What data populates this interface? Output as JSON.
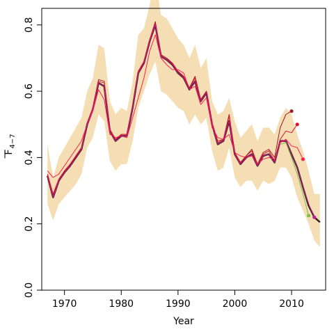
{
  "chart_data": {
    "type": "line",
    "title": "",
    "xlabel": "Year",
    "ylabel_main": "F",
    "ylabel_sub": "4−7",
    "xlim": [
      1966,
      2016
    ],
    "ylim": [
      0,
      0.85
    ],
    "x_ticks": [
      1970,
      1980,
      1990,
      2000,
      2010
    ],
    "y_ticks": [
      0.0,
      0.2,
      0.4,
      0.6,
      0.8
    ],
    "y_tick_labels": [
      "0.0",
      "0.2",
      "0.4",
      "0.6",
      "0.8"
    ],
    "grid": false,
    "legend": "none",
    "band_color": "#f5deb3",
    "band": {
      "x": [
        1967,
        1968,
        1969,
        1970,
        1971,
        1972,
        1973,
        1974,
        1975,
        1976,
        1977,
        1978,
        1979,
        1980,
        1981,
        1982,
        1983,
        1984,
        1985,
        1986,
        1987,
        1988,
        1989,
        1990,
        1991,
        1992,
        1993,
        1994,
        1995,
        1996,
        1997,
        1998,
        1999,
        2000,
        2001,
        2002,
        2003,
        2004,
        2005,
        2006,
        2007,
        2008,
        2009,
        2010,
        2011,
        2012,
        2013,
        2014,
        2015
      ],
      "lower": [
        0.26,
        0.21,
        0.26,
        0.28,
        0.3,
        0.32,
        0.35,
        0.43,
        0.46,
        0.53,
        0.51,
        0.39,
        0.36,
        0.38,
        0.38,
        0.45,
        0.55,
        0.6,
        0.65,
        0.69,
        0.6,
        0.59,
        0.57,
        0.55,
        0.54,
        0.5,
        0.53,
        0.5,
        0.52,
        0.42,
        0.36,
        0.37,
        0.43,
        0.34,
        0.31,
        0.33,
        0.33,
        0.3,
        0.33,
        0.32,
        0.33,
        0.37,
        0.37,
        0.34,
        0.28,
        0.24,
        0.2,
        0.15,
        0.13
      ],
      "upper": [
        0.44,
        0.34,
        0.4,
        0.43,
        0.46,
        0.49,
        0.52,
        0.6,
        0.64,
        0.74,
        0.73,
        0.57,
        0.53,
        0.55,
        0.54,
        0.63,
        0.77,
        0.79,
        0.86,
        0.94,
        0.83,
        0.82,
        0.79,
        0.76,
        0.74,
        0.7,
        0.74,
        0.67,
        0.7,
        0.57,
        0.53,
        0.54,
        0.58,
        0.51,
        0.46,
        0.48,
        0.5,
        0.45,
        0.49,
        0.49,
        0.47,
        0.52,
        0.55,
        0.53,
        0.47,
        0.42,
        0.36,
        0.29,
        0.29
      ]
    },
    "series": [
      {
        "color": "#3a1d1d",
        "width": 2.5,
        "x": [
          1967,
          1968,
          1969,
          1970,
          1971,
          1972,
          1973,
          1974,
          1975,
          1976,
          1977,
          1978,
          1979,
          1980,
          1981,
          1982,
          1983,
          1984,
          1985,
          1986,
          1987,
          1988,
          1989,
          1990,
          1991,
          1992,
          1993,
          1994,
          1995,
          1996,
          1997,
          1998,
          1999,
          2000,
          2001,
          2002,
          2003,
          2004,
          2005,
          2006,
          2007,
          2008,
          2009,
          2010,
          2011,
          2012,
          2013,
          2014,
          2015
        ],
        "y": [
          0.345,
          0.28,
          0.33,
          0.355,
          0.375,
          0.4,
          0.425,
          0.5,
          0.545,
          0.625,
          0.615,
          0.48,
          0.45,
          0.465,
          0.465,
          0.55,
          0.655,
          0.685,
          0.75,
          0.8,
          0.705,
          0.695,
          0.68,
          0.655,
          0.64,
          0.605,
          0.63,
          0.57,
          0.595,
          0.5,
          0.44,
          0.45,
          0.51,
          0.41,
          0.38,
          0.4,
          0.41,
          0.375,
          0.405,
          0.41,
          0.385,
          0.45,
          0.45,
          0.41,
          0.37,
          0.31,
          0.255,
          0.22,
          0.205
        ],
        "marker": null
      },
      {
        "color": "#ff1f4f",
        "width": 1,
        "x": [
          1967,
          1968,
          1969,
          1970,
          1971,
          1972,
          1973,
          1974,
          1975,
          1976,
          1977,
          1978,
          1979,
          1980,
          1981,
          1982,
          1983,
          1984,
          1985,
          1986,
          1987,
          1988,
          1989,
          1990,
          1991,
          1992,
          1993,
          1994,
          1995,
          1996,
          1997,
          1998,
          1999,
          2000,
          2001,
          2002,
          2003,
          2004,
          2005,
          2006,
          2007,
          2008,
          2009,
          2010,
          2011,
          2012
        ],
        "y": [
          0.36,
          0.34,
          0.35,
          0.375,
          0.4,
          0.425,
          0.45,
          0.5,
          0.54,
          0.605,
          0.575,
          0.47,
          0.46,
          0.465,
          0.46,
          0.52,
          0.58,
          0.64,
          0.72,
          0.77,
          0.7,
          0.68,
          0.665,
          0.665,
          0.655,
          0.605,
          0.615,
          0.56,
          0.58,
          0.49,
          0.46,
          0.455,
          0.47,
          0.415,
          0.405,
          0.4,
          0.405,
          0.38,
          0.395,
          0.4,
          0.395,
          0.445,
          0.455,
          0.435,
          0.43,
          0.395
        ],
        "marker": {
          "x": 2012,
          "y": 0.395
        }
      },
      {
        "color": "#a0192a",
        "width": 1,
        "x": [
          1967,
          1968,
          1969,
          1970,
          1971,
          1972,
          1973,
          1974,
          1975,
          1976,
          1977,
          1978,
          1979,
          1980,
          1981,
          1982,
          1983,
          1984,
          1985,
          1986,
          1987,
          1988,
          1989,
          1990,
          1991,
          1992,
          1993,
          1994,
          1995,
          1996,
          1997,
          1998,
          1999,
          2000,
          2001,
          2002,
          2003,
          2004,
          2005,
          2006,
          2007,
          2008,
          2009,
          2010
        ],
        "y": [
          0.35,
          0.285,
          0.33,
          0.355,
          0.38,
          0.405,
          0.43,
          0.505,
          0.55,
          0.635,
          0.63,
          0.485,
          0.455,
          0.47,
          0.47,
          0.555,
          0.66,
          0.69,
          0.755,
          0.81,
          0.71,
          0.7,
          0.685,
          0.66,
          0.645,
          0.61,
          0.645,
          0.575,
          0.6,
          0.505,
          0.445,
          0.455,
          0.53,
          0.415,
          0.385,
          0.405,
          0.425,
          0.38,
          0.415,
          0.425,
          0.4,
          0.49,
          0.53,
          0.54
        ],
        "marker": {
          "x": 2010,
          "y": 0.54
        }
      },
      {
        "color": "#e0102a",
        "width": 1,
        "x": [
          1967,
          1968,
          1969,
          1970,
          1971,
          1972,
          1973,
          1974,
          1975,
          1976,
          1977,
          1978,
          1979,
          1980,
          1981,
          1982,
          1983,
          1984,
          1985,
          1986,
          1987,
          1988,
          1989,
          1990,
          1991,
          1992,
          1993,
          1994,
          1995,
          1996,
          1997,
          1998,
          1999,
          2000,
          2001,
          2002,
          2003,
          2004,
          2005,
          2006,
          2007,
          2008,
          2009,
          2010,
          2011
        ],
        "y": [
          0.35,
          0.29,
          0.335,
          0.36,
          0.38,
          0.405,
          0.43,
          0.505,
          0.55,
          0.63,
          0.625,
          0.485,
          0.455,
          0.47,
          0.47,
          0.555,
          0.66,
          0.69,
          0.755,
          0.805,
          0.71,
          0.7,
          0.685,
          0.66,
          0.645,
          0.61,
          0.64,
          0.575,
          0.6,
          0.505,
          0.45,
          0.455,
          0.525,
          0.415,
          0.385,
          0.405,
          0.42,
          0.38,
          0.41,
          0.42,
          0.39,
          0.455,
          0.48,
          0.475,
          0.5
        ],
        "marker": {
          "x": 2011,
          "y": 0.5
        }
      },
      {
        "color": "#c01f8f",
        "width": 1,
        "x": [
          1967,
          1968,
          1969,
          1970,
          1971,
          1972,
          1973,
          1974,
          1975,
          1976,
          1977,
          1978,
          1979,
          1980,
          1981,
          1982,
          1983,
          1984,
          1985,
          1986,
          1987,
          1988,
          1989,
          1990,
          1991,
          1992,
          1993,
          1994,
          1995,
          1996,
          1997,
          1998,
          1999,
          2000,
          2001,
          2002,
          2003,
          2004,
          2005,
          2006,
          2007,
          2008,
          2009,
          2010,
          2011,
          2012,
          2013,
          2014
        ],
        "y": [
          0.345,
          0.28,
          0.33,
          0.355,
          0.375,
          0.4,
          0.425,
          0.5,
          0.545,
          0.625,
          0.615,
          0.48,
          0.45,
          0.465,
          0.465,
          0.55,
          0.655,
          0.685,
          0.75,
          0.8,
          0.705,
          0.695,
          0.68,
          0.655,
          0.64,
          0.605,
          0.63,
          0.57,
          0.595,
          0.5,
          0.44,
          0.45,
          0.51,
          0.41,
          0.38,
          0.4,
          0.41,
          0.375,
          0.405,
          0.41,
          0.385,
          0.45,
          0.45,
          0.41,
          0.37,
          0.31,
          0.26,
          0.22
        ],
        "marker": {
          "x": 2014,
          "y": 0.22
        }
      },
      {
        "color": "#7ac143",
        "width": 1,
        "x": [
          2008,
          2009,
          2010,
          2011,
          2012,
          2013
        ],
        "y": [
          0.44,
          0.445,
          0.4,
          0.35,
          0.29,
          0.225
        ],
        "marker": {
          "x": 2013,
          "y": 0.225
        }
      }
    ]
  }
}
